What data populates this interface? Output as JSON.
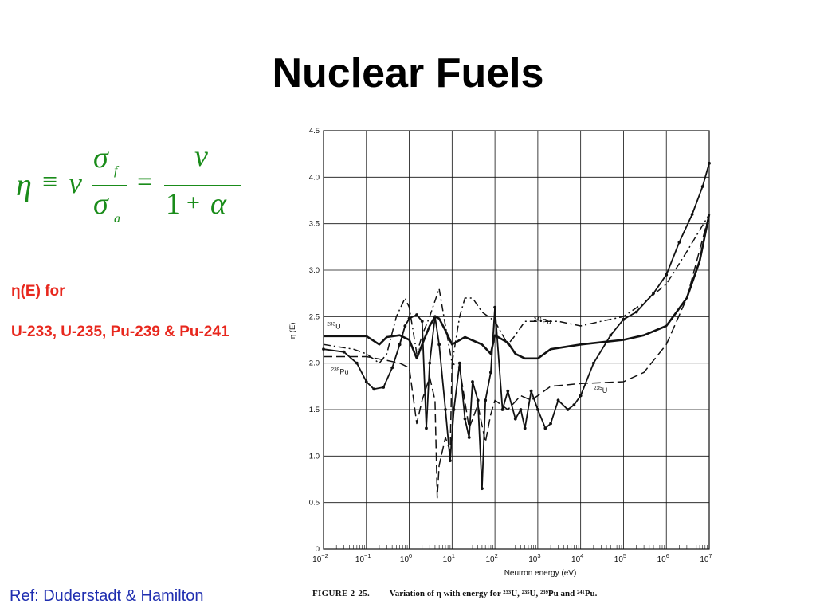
{
  "slide": {
    "title": "Nuclear Fuels",
    "eta_label": "η(E) for",
    "eta_description": "U-233, U-235, Pu-239 & Pu-241",
    "reference": "Ref: Duderstadt & Hamilton"
  },
  "equation": {
    "eta": "η",
    "equiv": "≡",
    "nu": "v",
    "sigma": "σ",
    "sub_f": "f",
    "sub_a": "a",
    "equals": "=",
    "one": "1",
    "plus": "+",
    "alpha": "α"
  },
  "figure": {
    "caption_tag": "FIGURE 2-25.",
    "caption_text": "Variation of η with energy for ²³³U, ²³⁵U, ²³⁹Pu and ²⁴¹Pu."
  },
  "colors": {
    "title": "#000000",
    "equation": "#1a8c1a",
    "highlight": "#e8281e",
    "reference": "#1f2eb0",
    "ink": "#111111"
  },
  "chart_data": {
    "type": "line",
    "title": "",
    "xlabel": "Neutron energy (eV)",
    "ylabel": "η (E)",
    "x_scale": "log",
    "xlim": [
      0.01,
      10000000
    ],
    "ylim": [
      0,
      4.5
    ],
    "grid": true,
    "x_ticks": [
      {
        "value": 0.01,
        "base": "10",
        "exp": "−2"
      },
      {
        "value": 0.1,
        "base": "10",
        "exp": "−1"
      },
      {
        "value": 1,
        "base": "10",
        "exp": "0"
      },
      {
        "value": 10,
        "base": "10",
        "exp": "1"
      },
      {
        "value": 100,
        "base": "10",
        "exp": "2"
      },
      {
        "value": 1000,
        "base": "10",
        "exp": "3"
      },
      {
        "value": 10000,
        "base": "10",
        "exp": "4"
      },
      {
        "value": 100000,
        "base": "10",
        "exp": "5"
      },
      {
        "value": 1000000,
        "base": "10",
        "exp": "6"
      },
      {
        "value": 10000000,
        "base": "10",
        "exp": "7"
      }
    ],
    "y_ticks": [
      {
        "value": 0,
        "label": "0"
      },
      {
        "value": 0.5,
        "label": "0.5"
      },
      {
        "value": 1.0,
        "label": "1.0"
      },
      {
        "value": 1.5,
        "label": "1.5"
      },
      {
        "value": 2.0,
        "label": "2.0"
      },
      {
        "value": 2.5,
        "label": "2.5"
      },
      {
        "value": 3.0,
        "label": "3.0"
      },
      {
        "value": 3.5,
        "label": "3.5"
      },
      {
        "value": 4.0,
        "label": "4.0"
      },
      {
        "value": 4.5,
        "label": "4.5"
      }
    ],
    "series": [
      {
        "name": "233U",
        "label_mass": "233",
        "label_sym": "U",
        "label_at": [
          0.012,
          2.37
        ],
        "style": "solid-thin",
        "points": [
          [
            0.01,
            2.29
          ],
          [
            0.03,
            2.29
          ],
          [
            0.1,
            2.29
          ],
          [
            0.2,
            2.2
          ],
          [
            0.3,
            2.28
          ],
          [
            0.6,
            2.3
          ],
          [
            1,
            2.25
          ],
          [
            1.5,
            2.05
          ],
          [
            2,
            2.2
          ],
          [
            3,
            2.4
          ],
          [
            4,
            2.5
          ],
          [
            5,
            2.48
          ],
          [
            7,
            2.35
          ],
          [
            10,
            2.2
          ],
          [
            20,
            2.28
          ],
          [
            50,
            2.2
          ],
          [
            80,
            2.1
          ],
          [
            100,
            2.3
          ],
          [
            200,
            2.22
          ],
          [
            300,
            2.1
          ],
          [
            500,
            2.05
          ],
          [
            1000,
            2.05
          ],
          [
            2000,
            2.15
          ],
          [
            10000,
            2.2
          ],
          [
            100000,
            2.25
          ],
          [
            300000,
            2.3
          ],
          [
            1000000,
            2.4
          ],
          [
            3000000,
            2.7
          ],
          [
            6000000,
            3.1
          ],
          [
            10000000,
            3.6
          ]
        ]
      },
      {
        "name": "235U",
        "label_mass": "235",
        "label_sym": "U",
        "label_at": [
          20000,
          1.68
        ],
        "style": "longdash",
        "points": [
          [
            0.01,
            2.07
          ],
          [
            0.1,
            2.07
          ],
          [
            0.3,
            2.03
          ],
          [
            0.6,
            2.0
          ],
          [
            1,
            1.95
          ],
          [
            1.5,
            1.35
          ],
          [
            2,
            1.6
          ],
          [
            3,
            1.85
          ],
          [
            4,
            1.6
          ],
          [
            4.5,
            0.55
          ],
          [
            5,
            0.9
          ],
          [
            7,
            1.2
          ],
          [
            9,
            1.05
          ],
          [
            10,
            2.0
          ],
          [
            15,
            1.95
          ],
          [
            25,
            1.3
          ],
          [
            40,
            1.55
          ],
          [
            60,
            1.15
          ],
          [
            80,
            1.45
          ],
          [
            100,
            1.6
          ],
          [
            200,
            1.5
          ],
          [
            400,
            1.65
          ],
          [
            700,
            1.6
          ],
          [
            1000,
            1.65
          ],
          [
            2000,
            1.75
          ],
          [
            10000,
            1.78
          ],
          [
            100000,
            1.8
          ],
          [
            300000,
            1.9
          ],
          [
            1000000,
            2.2
          ],
          [
            3000000,
            2.7
          ],
          [
            10000000,
            3.6
          ]
        ]
      },
      {
        "name": "239Pu",
        "label_mass": "239",
        "label_sym": "Pu",
        "label_at": [
          0.015,
          1.88
        ],
        "style": "solid-dots",
        "points": [
          [
            0.01,
            2.15
          ],
          [
            0.03,
            2.12
          ],
          [
            0.06,
            2.0
          ],
          [
            0.1,
            1.8
          ],
          [
            0.15,
            1.72
          ],
          [
            0.25,
            1.74
          ],
          [
            0.4,
            1.95
          ],
          [
            0.6,
            2.2
          ],
          [
            0.8,
            2.4
          ],
          [
            1,
            2.48
          ],
          [
            1.5,
            2.52
          ],
          [
            2,
            2.45
          ],
          [
            2.5,
            1.3
          ],
          [
            3,
            2.0
          ],
          [
            4,
            2.5
          ],
          [
            5,
            2.2
          ],
          [
            7,
            1.5
          ],
          [
            9,
            0.95
          ],
          [
            11,
            1.5
          ],
          [
            15,
            2.0
          ],
          [
            20,
            1.4
          ],
          [
            25,
            1.2
          ],
          [
            30,
            1.8
          ],
          [
            40,
            1.6
          ],
          [
            50,
            0.65
          ],
          [
            60,
            1.6
          ],
          [
            80,
            1.9
          ],
          [
            100,
            2.6
          ],
          [
            150,
            1.5
          ],
          [
            200,
            1.7
          ],
          [
            300,
            1.4
          ],
          [
            400,
            1.5
          ],
          [
            500,
            1.3
          ],
          [
            700,
            1.7
          ],
          [
            1000,
            1.5
          ],
          [
            1500,
            1.3
          ],
          [
            2000,
            1.35
          ],
          [
            3000,
            1.6
          ],
          [
            5000,
            1.5
          ],
          [
            7000,
            1.55
          ],
          [
            10000,
            1.65
          ],
          [
            20000,
            2.0
          ],
          [
            50000,
            2.3
          ],
          [
            100000,
            2.47
          ],
          [
            200000,
            2.55
          ],
          [
            500000,
            2.75
          ],
          [
            1000000,
            2.95
          ],
          [
            2000000,
            3.3
          ],
          [
            4000000,
            3.6
          ],
          [
            7000000,
            3.9
          ],
          [
            10000000,
            4.15
          ]
        ]
      },
      {
        "name": "241Pu",
        "label_mass": "241",
        "label_sym": "Pu",
        "label_at": [
          800,
          2.42
        ],
        "style": "dashdot",
        "points": [
          [
            0.01,
            2.2
          ],
          [
            0.05,
            2.15
          ],
          [
            0.1,
            2.1
          ],
          [
            0.2,
            2.0
          ],
          [
            0.3,
            2.1
          ],
          [
            0.5,
            2.5
          ],
          [
            0.8,
            2.7
          ],
          [
            1,
            2.6
          ],
          [
            1.5,
            2.1
          ],
          [
            2,
            2.3
          ],
          [
            3,
            2.5
          ],
          [
            5,
            2.8
          ],
          [
            7,
            2.4
          ],
          [
            10,
            2.0
          ],
          [
            15,
            2.5
          ],
          [
            20,
            2.7
          ],
          [
            30,
            2.7
          ],
          [
            50,
            2.55
          ],
          [
            100,
            2.45
          ],
          [
            200,
            2.2
          ],
          [
            300,
            2.3
          ],
          [
            500,
            2.45
          ],
          [
            1000,
            2.45
          ],
          [
            3000,
            2.45
          ],
          [
            10000,
            2.4
          ],
          [
            30000,
            2.45
          ],
          [
            100000,
            2.5
          ],
          [
            300000,
            2.65
          ],
          [
            1000000,
            2.85
          ],
          [
            3000000,
            3.2
          ],
          [
            10000000,
            3.6
          ]
        ]
      }
    ]
  }
}
